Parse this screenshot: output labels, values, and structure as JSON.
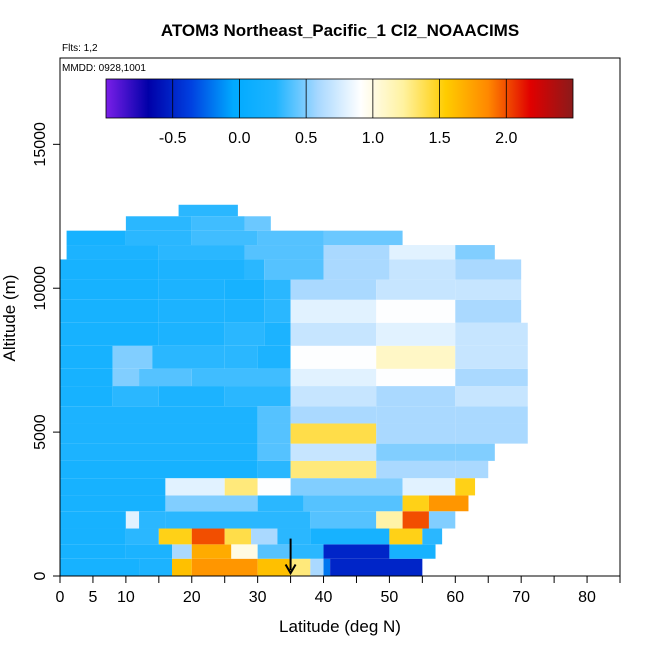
{
  "chart_data": {
    "type": "heatmap",
    "title": "ATOM3 Northeast_Pacific_1 Cl2_NOAACIMS",
    "flights_label": "Flts: 1,2",
    "dates_label": "MMDD: 0928,1001",
    "xlabel": "Latitude (deg N)",
    "ylabel": "Altitude (m)",
    "xlim": [
      0,
      85
    ],
    "ylim": [
      0,
      18000
    ],
    "x_ticks": [
      0,
      5,
      10,
      15,
      20,
      25,
      30,
      35,
      40,
      45,
      50,
      55,
      60,
      65,
      70,
      75,
      80,
      85
    ],
    "x_tick_labels": [
      "0",
      "5",
      "10",
      "",
      "20",
      "",
      "30",
      "",
      "40",
      "",
      "50",
      "",
      "60",
      "",
      "70",
      "",
      "80",
      ""
    ],
    "y_ticks": [
      0,
      5000,
      10000,
      15000
    ],
    "y_tick_labels": [
      "0",
      "5000",
      "10000",
      "15000"
    ],
    "colorbar": {
      "range": [
        -1.0,
        2.5
      ],
      "ticks": [
        -0.5,
        0.0,
        0.5,
        1.0,
        1.5,
        2.0
      ],
      "tick_labels": [
        "-0.5",
        "0.0",
        "0.5",
        "1.0",
        "1.5",
        "2.0"
      ],
      "colors": [
        "#7a1fe8",
        "#0000a8",
        "#0040e0",
        "#00aaff",
        "#1eb4ff",
        "#a8d8ff",
        "#ffffff",
        "#fff2a0",
        "#ffcc00",
        "#ff8800",
        "#e00000",
        "#8b1a1a"
      ]
    },
    "marker": {
      "type": "arrow-down",
      "latitude": 35,
      "altitude": 500
    },
    "bands": [
      {
        "alt": [
          0,
          600
        ],
        "segments": [
          [
            0,
            12,
            0.2
          ],
          [
            12,
            17,
            0.25
          ],
          [
            17,
            20,
            1.6
          ],
          [
            20,
            30,
            1.8
          ],
          [
            30,
            35,
            1.6
          ],
          [
            35,
            38,
            1.3
          ],
          [
            38,
            40,
            0.6
          ],
          [
            40,
            41,
            -0.2
          ],
          [
            41,
            55,
            -0.5
          ]
        ]
      },
      {
        "alt": [
          600,
          1100
        ],
        "segments": [
          [
            0,
            10,
            0.2
          ],
          [
            10,
            17,
            0.25
          ],
          [
            17,
            20,
            0.6
          ],
          [
            20,
            26,
            1.7
          ],
          [
            26,
            30,
            1.0
          ],
          [
            30,
            35,
            0.4
          ],
          [
            35,
            40,
            0.3
          ],
          [
            40,
            50,
            -0.5
          ],
          [
            50,
            57,
            0.2
          ]
        ]
      },
      {
        "alt": [
          1100,
          1650
        ],
        "segments": [
          [
            0,
            10,
            0.2
          ],
          [
            10,
            15,
            0.3
          ],
          [
            15,
            20,
            1.5
          ],
          [
            20,
            25,
            2.0
          ],
          [
            25,
            29,
            1.4
          ],
          [
            29,
            33,
            0.6
          ],
          [
            33,
            38,
            0.3
          ],
          [
            38,
            50,
            0.2
          ],
          [
            50,
            55,
            1.5
          ],
          [
            55,
            58,
            0.3
          ]
        ]
      },
      {
        "alt": [
          1650,
          2250
        ],
        "segments": [
          [
            0,
            10,
            0.2
          ],
          [
            10,
            12,
            0.8
          ],
          [
            12,
            16,
            0.3
          ],
          [
            16,
            38,
            0.3
          ],
          [
            38,
            48,
            0.4
          ],
          [
            48,
            52,
            1.2
          ],
          [
            52,
            56,
            2.0
          ],
          [
            56,
            60,
            0.5
          ]
        ]
      },
      {
        "alt": [
          2250,
          2800
        ],
        "segments": [
          [
            0,
            16,
            0.2
          ],
          [
            16,
            30,
            0.5
          ],
          [
            30,
            37,
            0.3
          ],
          [
            37,
            52,
            0.4
          ],
          [
            52,
            56,
            1.5
          ],
          [
            56,
            62,
            1.8
          ]
        ]
      },
      {
        "alt": [
          2800,
          3400
        ],
        "segments": [
          [
            0,
            16,
            0.2
          ],
          [
            16,
            25,
            0.8
          ],
          [
            25,
            30,
            1.3
          ],
          [
            30,
            35,
            0.9
          ],
          [
            35,
            52,
            0.5
          ],
          [
            52,
            60,
            0.8
          ],
          [
            60,
            63,
            1.5
          ]
        ]
      },
      {
        "alt": [
          3400,
          4000
        ],
        "segments": [
          [
            0,
            30,
            0.2
          ],
          [
            30,
            35,
            0.3
          ],
          [
            35,
            48,
            1.3
          ],
          [
            48,
            60,
            0.6
          ],
          [
            60,
            65,
            0.6
          ]
        ]
      },
      {
        "alt": [
          4000,
          4600
        ],
        "segments": [
          [
            0,
            30,
            0.25
          ],
          [
            30,
            35,
            0.4
          ],
          [
            35,
            48,
            0.7
          ],
          [
            48,
            60,
            0.5
          ],
          [
            60,
            66,
            0.5
          ]
        ]
      },
      {
        "alt": [
          4600,
          5300
        ],
        "segments": [
          [
            0,
            30,
            0.25
          ],
          [
            30,
            35,
            0.4
          ],
          [
            35,
            48,
            1.4
          ],
          [
            48,
            60,
            0.6
          ],
          [
            60,
            71,
            0.6
          ]
        ]
      },
      {
        "alt": [
          5300,
          5900
        ],
        "segments": [
          [
            0,
            30,
            0.25
          ],
          [
            30,
            35,
            0.4
          ],
          [
            35,
            48,
            0.6
          ],
          [
            48,
            60,
            0.6
          ],
          [
            60,
            71,
            0.6
          ]
        ]
      },
      {
        "alt": [
          5900,
          6600
        ],
        "segments": [
          [
            0,
            8,
            0.2
          ],
          [
            8,
            15,
            0.3
          ],
          [
            15,
            25,
            0.25
          ],
          [
            25,
            35,
            0.3
          ],
          [
            35,
            48,
            0.7
          ],
          [
            48,
            60,
            0.6
          ],
          [
            60,
            71,
            0.7
          ]
        ]
      },
      {
        "alt": [
          6600,
          7200
        ],
        "segments": [
          [
            0,
            8,
            0.2
          ],
          [
            8,
            12,
            0.5
          ],
          [
            12,
            20,
            0.4
          ],
          [
            20,
            35,
            0.35
          ],
          [
            35,
            48,
            0.8
          ],
          [
            48,
            60,
            0.9
          ],
          [
            60,
            71,
            0.6
          ]
        ]
      },
      {
        "alt": [
          7200,
          8000
        ],
        "segments": [
          [
            0,
            8,
            0.2
          ],
          [
            8,
            14,
            0.5
          ],
          [
            14,
            25,
            0.3
          ],
          [
            25,
            30,
            0.3
          ],
          [
            30,
            35,
            0.25
          ],
          [
            35,
            48,
            0.9
          ],
          [
            48,
            60,
            1.1
          ],
          [
            60,
            71,
            0.7
          ]
        ]
      },
      {
        "alt": [
          8000,
          8800
        ],
        "segments": [
          [
            0,
            15,
            0.2
          ],
          [
            15,
            25,
            0.25
          ],
          [
            25,
            31,
            0.3
          ],
          [
            31,
            35,
            0.25
          ],
          [
            35,
            48,
            0.7
          ],
          [
            48,
            60,
            0.8
          ],
          [
            60,
            71,
            0.7
          ]
        ]
      },
      {
        "alt": [
          8800,
          9600
        ],
        "segments": [
          [
            0,
            15,
            0.2
          ],
          [
            15,
            25,
            0.25
          ],
          [
            25,
            31,
            0.25
          ],
          [
            31,
            35,
            0.3
          ],
          [
            35,
            48,
            0.8
          ],
          [
            48,
            60,
            0.9
          ],
          [
            60,
            70,
            0.6
          ]
        ]
      },
      {
        "alt": [
          9600,
          10300
        ],
        "segments": [
          [
            0,
            15,
            0.2
          ],
          [
            15,
            25,
            0.25
          ],
          [
            25,
            31,
            0.2
          ],
          [
            31,
            35,
            0.3
          ],
          [
            35,
            48,
            0.6
          ],
          [
            48,
            60,
            0.7
          ],
          [
            60,
            70,
            0.7
          ]
        ]
      },
      {
        "alt": [
          10300,
          11000
        ],
        "segments": [
          [
            0,
            15,
            0.2
          ],
          [
            15,
            28,
            0.25
          ],
          [
            28,
            31,
            0.3
          ],
          [
            31,
            40,
            0.4
          ],
          [
            40,
            50,
            0.6
          ],
          [
            50,
            60,
            0.7
          ],
          [
            60,
            70,
            0.6
          ]
        ]
      },
      {
        "alt": [
          11000,
          11500
        ],
        "segments": [
          [
            1,
            15,
            0.25
          ],
          [
            15,
            28,
            0.3
          ],
          [
            28,
            40,
            0.4
          ],
          [
            40,
            50,
            0.6
          ],
          [
            50,
            60,
            0.8
          ],
          [
            60,
            66,
            0.5
          ]
        ]
      },
      {
        "alt": [
          11500,
          12000
        ],
        "segments": [
          [
            1,
            10,
            0.2
          ],
          [
            10,
            20,
            0.3
          ],
          [
            20,
            30,
            0.35
          ],
          [
            30,
            40,
            0.4
          ],
          [
            40,
            52,
            0.45
          ]
        ]
      },
      {
        "alt": [
          12000,
          12500
        ],
        "segments": [
          [
            10,
            20,
            0.3
          ],
          [
            20,
            28,
            0.35
          ],
          [
            28,
            32,
            0.45
          ]
        ]
      },
      {
        "alt": [
          12500,
          12900
        ],
        "segments": [
          [
            18,
            27,
            0.3
          ]
        ]
      }
    ]
  }
}
